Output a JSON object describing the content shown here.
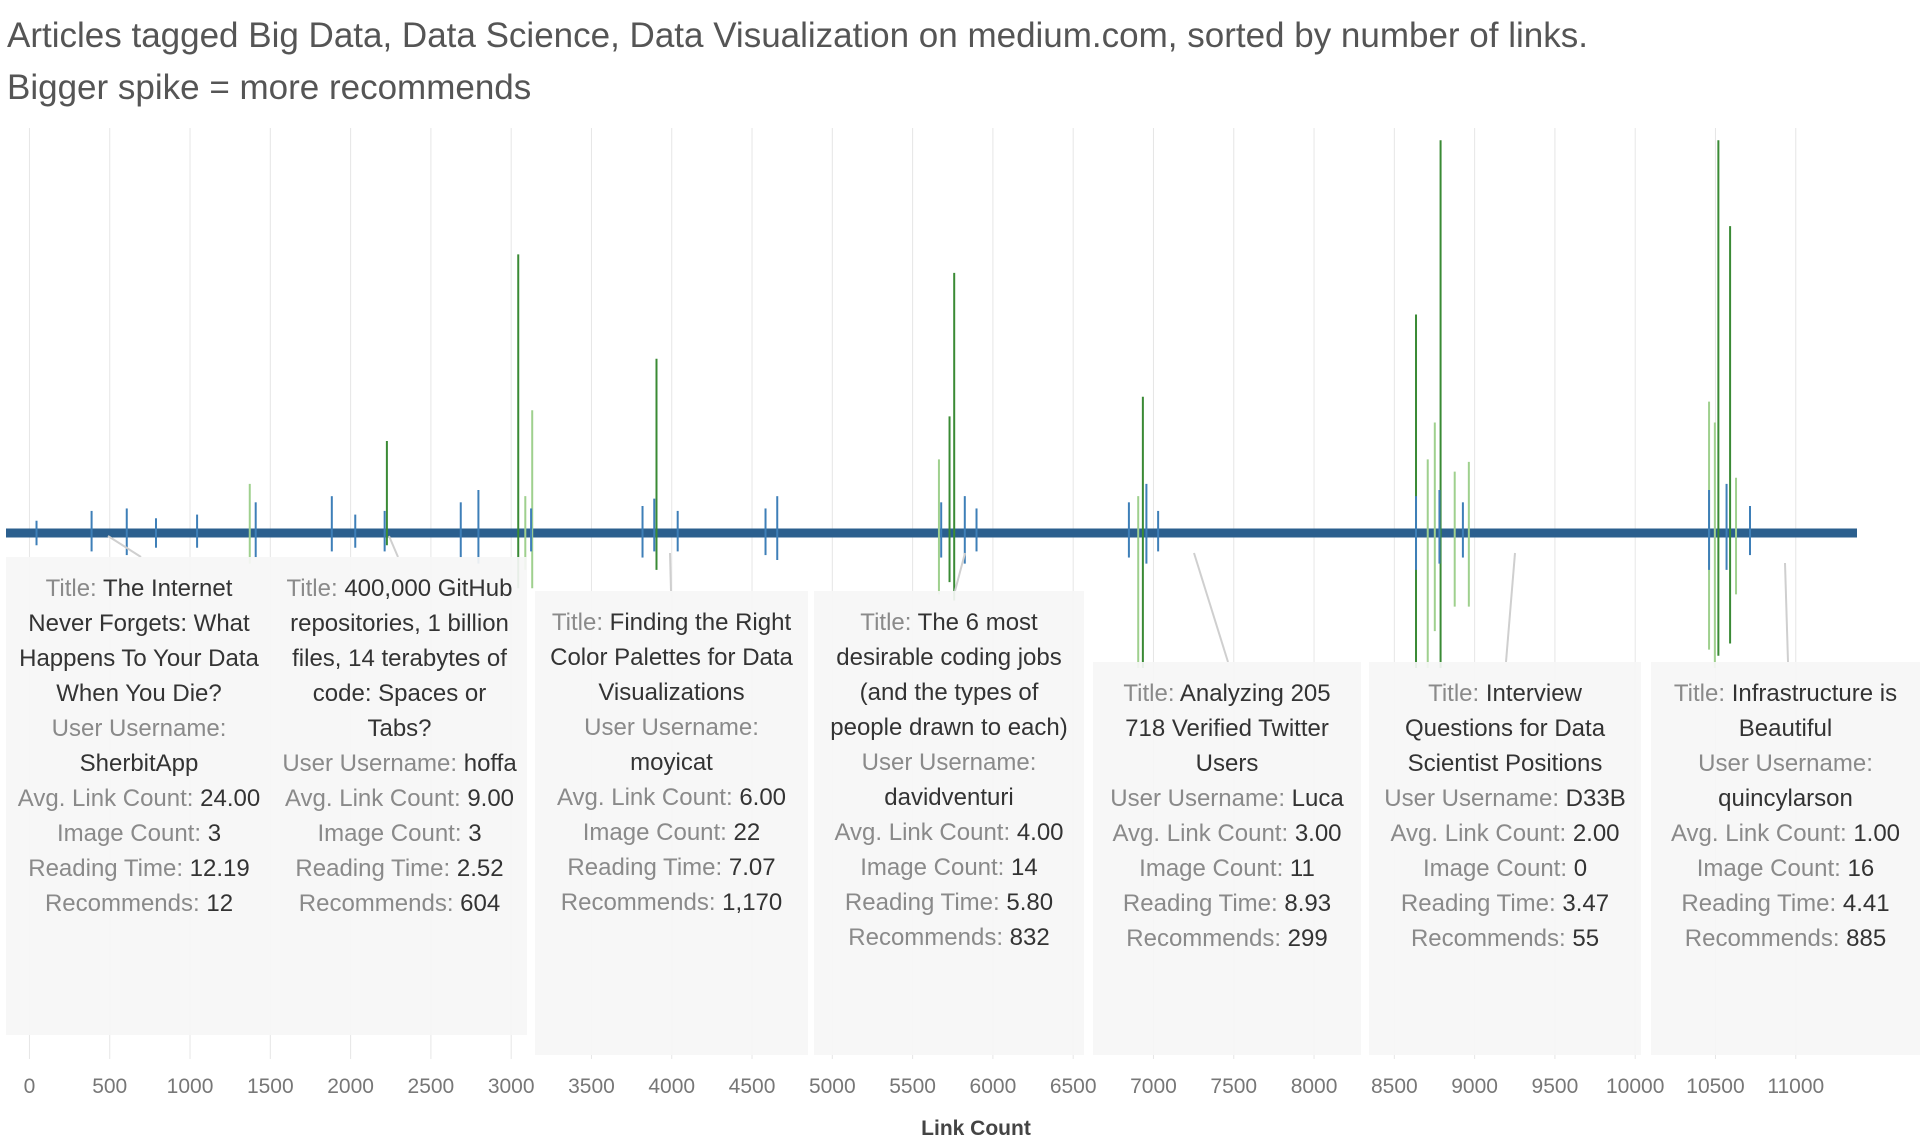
{
  "chart_data": {
    "type": "spike",
    "title": "Articles tagged Big Data, Data Science, Data Visualization on medium.com, sorted by number of links.",
    "subtitle": "Bigger spike = more recommends",
    "x_label": "Link Count",
    "xlim": [
      -90,
      11400
    ],
    "xticks": [
      0,
      500,
      1000,
      1500,
      2000,
      2500,
      3000,
      3500,
      4000,
      4500,
      5000,
      5500,
      6000,
      6500,
      7000,
      7500,
      8000,
      8500,
      9000,
      9500,
      10000,
      10500,
      11000
    ],
    "ylim": [
      -330,
      330
    ],
    "grid": true,
    "series": [
      {
        "color": "#3a8a35",
        "x": [
          3044,
          2226,
          3905,
          5759,
          6934,
          8788,
          10518,
          8635,
          10591,
          5730
        ],
        "values": [
          227,
          75,
          142,
          212,
          111,
          320,
          320,
          178,
          250,
          95
        ],
        "low": [
          -45,
          -10,
          -30,
          -55,
          -110,
          -110,
          -100,
          -110,
          -90,
          -40
        ]
      },
      {
        "color": "#9fd08e",
        "x": [
          3131,
          1372,
          5664,
          6905,
          8708,
          8964,
          10460,
          10496,
          8752,
          8876,
          10628,
          3088
        ],
        "values": [
          100,
          40,
          60,
          30,
          60,
          58,
          107,
          90,
          90,
          50,
          45,
          30
        ],
        "low": [
          -45,
          -25,
          -50,
          -110,
          -110,
          -60,
          -95,
          -110,
          -80,
          -60,
          -50,
          -30
        ]
      },
      {
        "color": "#3e7fb8",
        "x": [
          44,
          387,
          606,
          788,
          1044,
          1409,
          1883,
          2029,
          2212,
          2686,
          2796,
          3124,
          3818,
          3891,
          4037,
          4584,
          4657,
          5678,
          5825,
          5898,
          6847,
          6956,
          7029,
          8635,
          8781,
          8927,
          10460,
          10569,
          10715
        ],
        "values": [
          10,
          18,
          20,
          12,
          15,
          25,
          30,
          15,
          18,
          25,
          35,
          20,
          22,
          28,
          18,
          20,
          30,
          25,
          30,
          20,
          25,
          40,
          18,
          30,
          35,
          25,
          35,
          40,
          22
        ],
        "low": [
          -10,
          -15,
          -18,
          -12,
          -12,
          -20,
          -15,
          -12,
          -15,
          -20,
          -25,
          -15,
          -20,
          -15,
          -15,
          -18,
          -22,
          -20,
          -25,
          -15,
          -20,
          -25,
          -15,
          -30,
          -25,
          -20,
          -30,
          -30,
          -18
        ]
      }
    ],
    "annotation_labels": {
      "title": "Title:",
      "username": "User Username:",
      "avg_link_count": "Avg. Link Count:",
      "image_count": "Image Count:",
      "reading_time": "Reading Time:",
      "recommends": "Recommends:"
    },
    "annotations": [
      {
        "title": "The Internet Never Forgets: What Happens To Your Data When You Die?",
        "username": "SherbitApp",
        "avg_link_count": {
          "value": 24,
          "label": "24.00"
        },
        "image_count": 3,
        "reading_time": 12.19,
        "recommends": 12
      },
      {
        "title": "400,000 GitHub repositories, 1 billion files, 14 terabytes of code: Spaces or Tabs?",
        "username": "hoffa",
        "avg_link_count": {
          "value": 9,
          "label": "9.00"
        },
        "image_count": 3,
        "reading_time": 2.52,
        "recommends": 604
      },
      {
        "title": "Finding the Right Color Palettes for Data Visualizations",
        "username": "moyicat",
        "avg_link_count": {
          "value": 6,
          "label": "6.00"
        },
        "image_count": 22,
        "reading_time": 7.07,
        "recommends": {
          "value": 1170,
          "label": "1,170"
        }
      },
      {
        "title": "The 6 most desirable coding jobs (and the types of people drawn to each)",
        "username": "davidventuri",
        "avg_link_count": {
          "value": 4,
          "label": "4.00"
        },
        "image_count": 14,
        "reading_time": {
          "value": 5.8,
          "label": "5.80"
        },
        "recommends": 832
      },
      {
        "title": "Analyzing 205 718 Verified Twitter Users",
        "username": "Luca",
        "avg_link_count": {
          "value": 3,
          "label": "3.00"
        },
        "image_count": 11,
        "reading_time": 8.93,
        "recommends": 299
      },
      {
        "title": "Interview Questions for Data Scientist Positions",
        "username": "D33B",
        "avg_link_count": {
          "value": 2,
          "label": "2.00"
        },
        "image_count": 0,
        "reading_time": 3.47,
        "recommends": 55
      },
      {
        "title": "Infrastructure is Beautiful",
        "username": "quincylarson",
        "avg_link_count": {
          "value": 1,
          "label": "1.00"
        },
        "image_count": 16,
        "reading_time": 4.41,
        "recommends": 885
      }
    ]
  }
}
